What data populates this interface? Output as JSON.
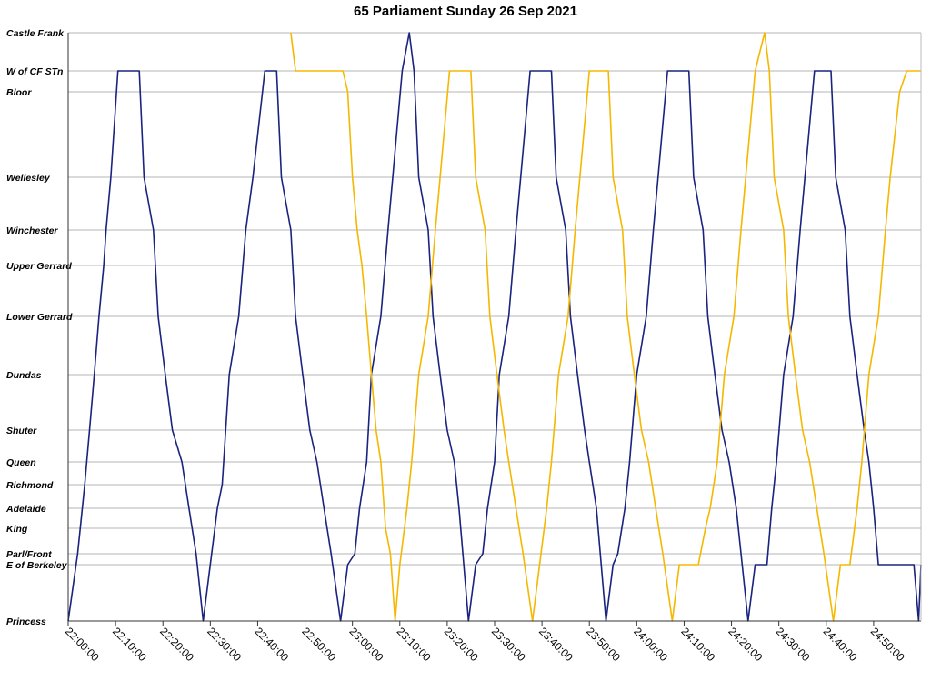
{
  "chart_data": {
    "type": "line",
    "title": "65 Parliament Sunday 26 Sep 2021",
    "xlabel": "",
    "ylabel": "",
    "xlim": [
      "22:00:00",
      "25:00:00"
    ],
    "x_ticks": [
      "22:00:00",
      "22:10:00",
      "22:20:00",
      "22:30:00",
      "22:40:00",
      "22:50:00",
      "23:00:00",
      "23:10:00",
      "23:20:00",
      "23:30:00",
      "23:40:00",
      "23:50:00",
      "24:00:00",
      "24:10:00",
      "24:20:00",
      "24:30:00",
      "24:40:00",
      "24:50:00"
    ],
    "stops": [
      {
        "name": "Castle Frank",
        "pos": 0
      },
      {
        "name": "W of CF STn",
        "pos": 42
      },
      {
        "name": "Bloor",
        "pos": 65
      },
      {
        "name": "Wellesley",
        "pos": 159
      },
      {
        "name": "Winchester",
        "pos": 217
      },
      {
        "name": "Upper Gerrard",
        "pos": 256
      },
      {
        "name": "Lower Gerrard",
        "pos": 312
      },
      {
        "name": "Dundas",
        "pos": 376
      },
      {
        "name": "Shuter",
        "pos": 437
      },
      {
        "name": "Queen",
        "pos": 472
      },
      {
        "name": "Richmond",
        "pos": 497
      },
      {
        "name": "Adelaide",
        "pos": 523
      },
      {
        "name": "King",
        "pos": 545
      },
      {
        "name": "Parl/Front",
        "pos": 573
      },
      {
        "name": "E of Berkeley",
        "pos": 585
      },
      {
        "name": "Princess",
        "pos": 647
      }
    ],
    "grid": true,
    "legend": "none",
    "series": [
      {
        "color": "#1a237e",
        "points": [
          [
            "22:00:00",
            "Princess"
          ],
          [
            "22:02:00",
            "Parl/Front"
          ],
          [
            "22:03:30",
            "Richmond"
          ],
          [
            "22:04:30",
            "Shuter"
          ],
          [
            "22:05:30",
            "Dundas"
          ],
          [
            "22:06:30",
            "Lower Gerrard"
          ],
          [
            "22:07:30",
            "Upper Gerrard"
          ],
          [
            "22:08:00",
            "Winchester"
          ],
          [
            "22:09:00",
            "Wellesley"
          ],
          [
            "22:10:30",
            "W of CF STn"
          ],
          [
            "22:15:00",
            "W of CF STn"
          ],
          [
            "22:16:00",
            "Wellesley"
          ],
          [
            "22:18:00",
            "Winchester"
          ],
          [
            "22:19:00",
            "Lower Gerrard"
          ],
          [
            "22:20:30",
            "Dundas"
          ],
          [
            "22:22:00",
            "Shuter"
          ],
          [
            "22:24:00",
            "Queen"
          ],
          [
            "22:25:30",
            "Adelaide"
          ],
          [
            "22:27:00",
            "Parl/Front"
          ],
          [
            "22:28:30",
            "Princess"
          ],
          [
            "22:30:00",
            "E of Berkeley"
          ],
          [
            "22:31:30",
            "Adelaide"
          ],
          [
            "22:32:30",
            "Richmond"
          ],
          [
            "22:34:00",
            "Dundas"
          ],
          [
            "22:36:00",
            "Lower Gerrard"
          ],
          [
            "22:37:30",
            "Winchester"
          ],
          [
            "22:39:00",
            "Wellesley"
          ],
          [
            "22:41:30",
            "W of CF STn"
          ],
          [
            "22:44:00",
            "W of CF STn"
          ],
          [
            "22:45:00",
            "Wellesley"
          ],
          [
            "22:47:00",
            "Winchester"
          ],
          [
            "22:48:00",
            "Lower Gerrard"
          ],
          [
            "22:49:30",
            "Dundas"
          ],
          [
            "22:51:00",
            "Shuter"
          ],
          [
            "22:52:30",
            "Queen"
          ],
          [
            "22:54:00",
            "Adelaide"
          ],
          [
            "22:55:30",
            "Parl/Front"
          ],
          [
            "22:57:30",
            "Princess"
          ],
          [
            "22:59:00",
            "E of Berkeley"
          ],
          [
            "23:00:30",
            "Parl/Front"
          ],
          [
            "23:01:30",
            "Adelaide"
          ],
          [
            "23:03:00",
            "Queen"
          ],
          [
            "23:04:00",
            "Dundas"
          ],
          [
            "23:06:00",
            "Lower Gerrard"
          ],
          [
            "23:07:30",
            "Winchester"
          ],
          [
            "23:08:30",
            "Wellesley"
          ],
          [
            "23:10:30",
            "W of CF STn"
          ],
          [
            "23:12:00",
            "Castle Frank"
          ],
          [
            "23:13:00",
            "W of CF STn"
          ],
          [
            "23:14:00",
            "Wellesley"
          ],
          [
            "23:16:00",
            "Winchester"
          ],
          [
            "23:17:00",
            "Lower Gerrard"
          ],
          [
            "23:18:30",
            "Dundas"
          ],
          [
            "23:20:00",
            "Shuter"
          ],
          [
            "23:21:30",
            "Queen"
          ],
          [
            "23:22:30",
            "Adelaide"
          ],
          [
            "23:24:30",
            "Princess"
          ],
          [
            "23:26:00",
            "E of Berkeley"
          ],
          [
            "23:27:30",
            "Parl/Front"
          ],
          [
            "23:28:30",
            "Adelaide"
          ],
          [
            "23:30:00",
            "Queen"
          ],
          [
            "23:31:00",
            "Dundas"
          ],
          [
            "23:33:00",
            "Lower Gerrard"
          ],
          [
            "23:34:30",
            "Winchester"
          ],
          [
            "23:35:30",
            "Wellesley"
          ],
          [
            "23:37:30",
            "W of CF STn"
          ],
          [
            "23:42:00",
            "W of CF STn"
          ],
          [
            "23:43:00",
            "Wellesley"
          ],
          [
            "23:45:00",
            "Winchester"
          ],
          [
            "23:46:00",
            "Lower Gerrard"
          ],
          [
            "23:47:30",
            "Dundas"
          ],
          [
            "23:49:00",
            "Shuter"
          ],
          [
            "23:50:00",
            "Queen"
          ],
          [
            "23:51:30",
            "Adelaide"
          ],
          [
            "23:53:30",
            "Princess"
          ],
          [
            "23:55:00",
            "E of Berkeley"
          ],
          [
            "23:56:00",
            "Parl/Front"
          ],
          [
            "23:57:30",
            "Adelaide"
          ],
          [
            "23:58:30",
            "Queen"
          ],
          [
            "24:00:00",
            "Dundas"
          ],
          [
            "24:02:00",
            "Lower Gerrard"
          ],
          [
            "24:03:30",
            "Winchester"
          ],
          [
            "24:04:30",
            "Wellesley"
          ],
          [
            "24:06:30",
            "W of CF STn"
          ],
          [
            "24:11:00",
            "W of CF STn"
          ],
          [
            "24:12:00",
            "Wellesley"
          ],
          [
            "24:14:00",
            "Winchester"
          ],
          [
            "24:15:00",
            "Lower Gerrard"
          ],
          [
            "24:16:30",
            "Dundas"
          ],
          [
            "24:18:00",
            "Shuter"
          ],
          [
            "24:19:30",
            "Queen"
          ],
          [
            "24:21:00",
            "Adelaide"
          ],
          [
            "24:23:30",
            "Princess"
          ],
          [
            "24:25:00",
            "E of Berkeley"
          ],
          [
            "24:27:30",
            "E of Berkeley"
          ],
          [
            "24:28:30",
            "Adelaide"
          ],
          [
            "24:29:30",
            "Queen"
          ],
          [
            "24:31:00",
            "Dundas"
          ],
          [
            "24:33:00",
            "Lower Gerrard"
          ],
          [
            "24:34:30",
            "Winchester"
          ],
          [
            "24:35:30",
            "Wellesley"
          ],
          [
            "24:37:30",
            "W of CF STn"
          ],
          [
            "24:41:00",
            "W of CF STn"
          ],
          [
            "24:42:00",
            "Wellesley"
          ],
          [
            "24:44:00",
            "Winchester"
          ],
          [
            "24:45:00",
            "Lower Gerrard"
          ],
          [
            "24:46:30",
            "Dundas"
          ],
          [
            "24:48:00",
            "Shuter"
          ],
          [
            "24:49:00",
            "Queen"
          ],
          [
            "24:50:00",
            "Adelaide"
          ],
          [
            "24:51:00",
            "E of Berkeley"
          ],
          [
            "24:58:30",
            "E of Berkeley"
          ],
          [
            "24:59:30",
            "Princess"
          ],
          [
            "25:00:00",
            "E of Berkeley"
          ]
        ]
      },
      {
        "color": "#f5b800",
        "points": [
          [
            "22:47:00",
            "Castle Frank"
          ],
          [
            "22:48:00",
            "W of CF STn"
          ],
          [
            "22:50:00",
            "W of CF STn"
          ],
          [
            "22:54:00",
            "W of CF STn"
          ],
          [
            "22:58:00",
            "W of CF STn"
          ],
          [
            "22:59:00",
            "Bloor"
          ],
          [
            "23:00:00",
            "Wellesley"
          ],
          [
            "23:01:00",
            "Winchester"
          ],
          [
            "23:02:00",
            "Upper Gerrard"
          ],
          [
            "23:03:00",
            "Lower Gerrard"
          ],
          [
            "23:04:00",
            "Dundas"
          ],
          [
            "23:05:00",
            "Shuter"
          ],
          [
            "23:06:00",
            "Queen"
          ],
          [
            "23:07:00",
            "King"
          ],
          [
            "23:08:00",
            "Parl/Front"
          ],
          [
            "23:09:00",
            "Princess"
          ],
          [
            "23:10:00",
            "E of Berkeley"
          ],
          [
            "23:11:30",
            "Adelaide"
          ],
          [
            "23:12:30",
            "Queen"
          ],
          [
            "23:14:00",
            "Dundas"
          ],
          [
            "23:16:00",
            "Lower Gerrard"
          ],
          [
            "23:17:30",
            "Winchester"
          ],
          [
            "23:18:30",
            "Wellesley"
          ],
          [
            "23:20:30",
            "W of CF STn"
          ],
          [
            "23:25:00",
            "W of CF STn"
          ],
          [
            "23:26:00",
            "Wellesley"
          ],
          [
            "23:28:00",
            "Winchester"
          ],
          [
            "23:29:00",
            "Lower Gerrard"
          ],
          [
            "23:30:30",
            "Dundas"
          ],
          [
            "23:32:00",
            "Shuter"
          ],
          [
            "23:33:00",
            "Queen"
          ],
          [
            "23:34:30",
            "Adelaide"
          ],
          [
            "23:36:00",
            "Parl/Front"
          ],
          [
            "23:38:00",
            "Princess"
          ],
          [
            "23:39:30",
            "E of Berkeley"
          ],
          [
            "23:41:00",
            "Adelaide"
          ],
          [
            "23:42:00",
            "Queen"
          ],
          [
            "23:43:30",
            "Dundas"
          ],
          [
            "23:45:30",
            "Lower Gerrard"
          ],
          [
            "23:47:00",
            "Winchester"
          ],
          [
            "23:48:00",
            "Wellesley"
          ],
          [
            "23:50:00",
            "W of CF STn"
          ],
          [
            "23:54:00",
            "W of CF STn"
          ],
          [
            "23:55:00",
            "Wellesley"
          ],
          [
            "23:57:00",
            "Winchester"
          ],
          [
            "23:58:00",
            "Lower Gerrard"
          ],
          [
            "23:59:30",
            "Dundas"
          ],
          [
            "24:01:00",
            "Shuter"
          ],
          [
            "24:02:30",
            "Queen"
          ],
          [
            "24:04:00",
            "Adelaide"
          ],
          [
            "24:05:30",
            "Parl/Front"
          ],
          [
            "24:07:30",
            "Princess"
          ],
          [
            "24:09:00",
            "E of Berkeley"
          ],
          [
            "24:13:00",
            "E of Berkeley"
          ],
          [
            "24:14:30",
            "King"
          ],
          [
            "24:15:30",
            "Adelaide"
          ],
          [
            "24:17:00",
            "Queen"
          ],
          [
            "24:18:30",
            "Dundas"
          ],
          [
            "24:20:30",
            "Lower Gerrard"
          ],
          [
            "24:22:00",
            "Winchester"
          ],
          [
            "24:23:00",
            "Wellesley"
          ],
          [
            "24:25:00",
            "W of CF STn"
          ],
          [
            "24:27:00",
            "Castle Frank"
          ],
          [
            "24:28:00",
            "W of CF STn"
          ],
          [
            "24:29:00",
            "Wellesley"
          ],
          [
            "24:31:00",
            "Winchester"
          ],
          [
            "24:32:00",
            "Lower Gerrard"
          ],
          [
            "24:33:30",
            "Dundas"
          ],
          [
            "24:35:00",
            "Shuter"
          ],
          [
            "24:36:30",
            "Queen"
          ],
          [
            "24:38:00",
            "Adelaide"
          ],
          [
            "24:39:30",
            "Parl/Front"
          ],
          [
            "24:41:30",
            "Princess"
          ],
          [
            "24:43:00",
            "E of Berkeley"
          ],
          [
            "24:45:00",
            "E of Berkeley"
          ],
          [
            "24:46:30",
            "Adelaide"
          ],
          [
            "24:47:30",
            "Queen"
          ],
          [
            "24:49:00",
            "Dundas"
          ],
          [
            "24:51:00",
            "Lower Gerrard"
          ],
          [
            "24:52:30",
            "Winchester"
          ],
          [
            "24:53:30",
            "Wellesley"
          ],
          [
            "24:55:30",
            "Bloor"
          ],
          [
            "24:57:00",
            "W of CF STn"
          ],
          [
            "25:00:00",
            "W of CF STn"
          ]
        ]
      }
    ]
  }
}
